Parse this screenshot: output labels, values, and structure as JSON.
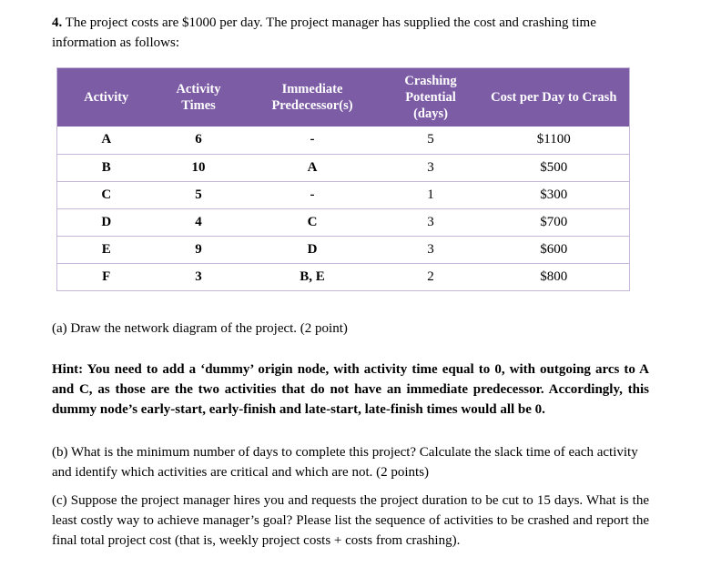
{
  "question": {
    "number": "4.",
    "intro": "The project costs are $1000 per day. The project manager has supplied the cost and crashing time information as follows:"
  },
  "table": {
    "headers": [
      "Activity",
      "Activity Times",
      "Immediate Predecessor(s)",
      "Crashing Potential (days)",
      "Cost per Day to Crash"
    ],
    "rows": [
      [
        "A",
        "6",
        "-",
        "5",
        "$1100"
      ],
      [
        "B",
        "10",
        "A",
        "3",
        "$500"
      ],
      [
        "C",
        "5",
        "-",
        "1",
        "$300"
      ],
      [
        "D",
        "4",
        "C",
        "3",
        "$700"
      ],
      [
        "E",
        "9",
        "D",
        "3",
        "$600"
      ],
      [
        "F",
        "3",
        "B, E",
        "2",
        "$800"
      ]
    ]
  },
  "parts": {
    "a": "(a) Draw the network diagram of the project. (2 point)",
    "hint": "Hint: You need to add a ‘dummy’ origin node, with activity time equal to 0, with outgoing arcs to A and C, as those are the two activities that do not have an immediate predecessor. Accordingly, this dummy node’s early-start, early-finish and late-start, late-finish times would all be 0.",
    "b": "(b) What is the minimum number of days to complete this project? Calculate the slack time of each activity and identify which activities are critical and which are not. (2 points)",
    "c": "(c) Suppose the project manager hires you and requests the project duration to be cut to 15 days. What is the least costly way to achieve manager’s goal? Please list the sequence of activities to be crashed and report the final total project cost (that is, weekly project costs + costs from crashing)."
  },
  "colors": {
    "header_bg": "#7d5ca6",
    "header_text": "#ffffff",
    "table_border": "#c7b8da"
  }
}
